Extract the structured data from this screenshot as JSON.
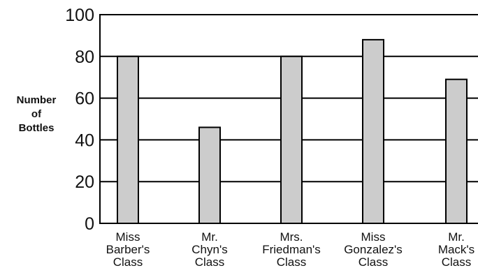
{
  "chart_data": {
    "type": "bar",
    "ylabel": [
      "Number",
      "of",
      "Bottles"
    ],
    "xlabel": "",
    "ylim": [
      0,
      100
    ],
    "yticks": [
      0,
      20,
      40,
      60,
      80,
      100
    ],
    "grid": true,
    "categories": [
      [
        "Miss",
        "Barber's",
        "Class"
      ],
      [
        "Mr.",
        "Chyn's",
        "Class"
      ],
      [
        "Mrs.",
        "Friedman's",
        "Class"
      ],
      [
        "Miss",
        "Gonzalez's",
        "Class"
      ],
      [
        "Mr.",
        "Mack's",
        "Class"
      ]
    ],
    "values": [
      80,
      46,
      80,
      88,
      69
    ],
    "bar_color": "#cccccc"
  }
}
